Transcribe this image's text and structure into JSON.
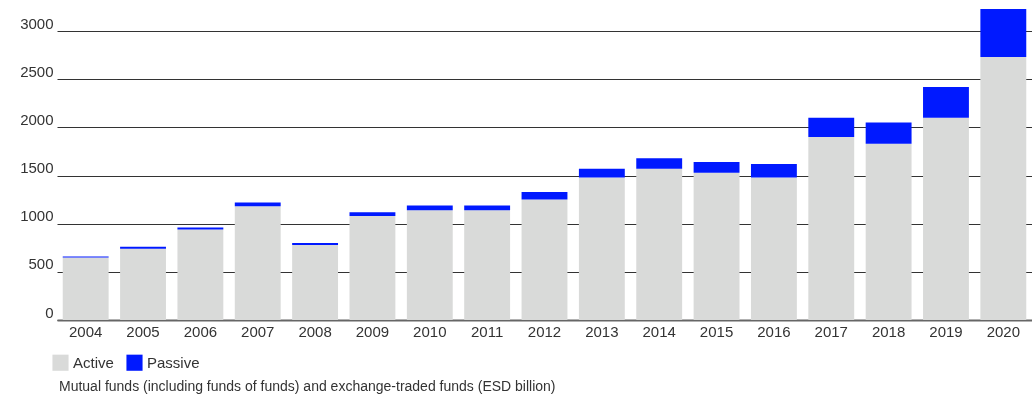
{
  "chart_data": {
    "type": "bar",
    "stacked": true,
    "categories": [
      "2004",
      "2005",
      "2006",
      "2007",
      "2008",
      "2009",
      "2010",
      "2011",
      "2012",
      "2013",
      "2014",
      "2015",
      "2016",
      "2017",
      "2018",
      "2019",
      "2020"
    ],
    "series": [
      {
        "name": "Active",
        "color": "#d9dad9",
        "values": [
          650,
          740,
          940,
          1180,
          780,
          1080,
          1140,
          1140,
          1250,
          1480,
          1570,
          1530,
          1480,
          1900,
          1830,
          2100,
          2730
        ]
      },
      {
        "name": "Passive",
        "color": "#0019ff",
        "values": [
          10,
          20,
          20,
          40,
          20,
          40,
          50,
          50,
          80,
          90,
          110,
          110,
          140,
          200,
          220,
          320,
          500
        ]
      }
    ],
    "ylim": [
      0,
      3250
    ],
    "yticks": [
      0,
      500,
      1000,
      1500,
      2000,
      2500,
      3000
    ],
    "grid": "y",
    "legend": "bottom left",
    "annotations": [
      "Mutual funds (including funds of funds) and exchange-traded funds (ESD billion)"
    ]
  }
}
